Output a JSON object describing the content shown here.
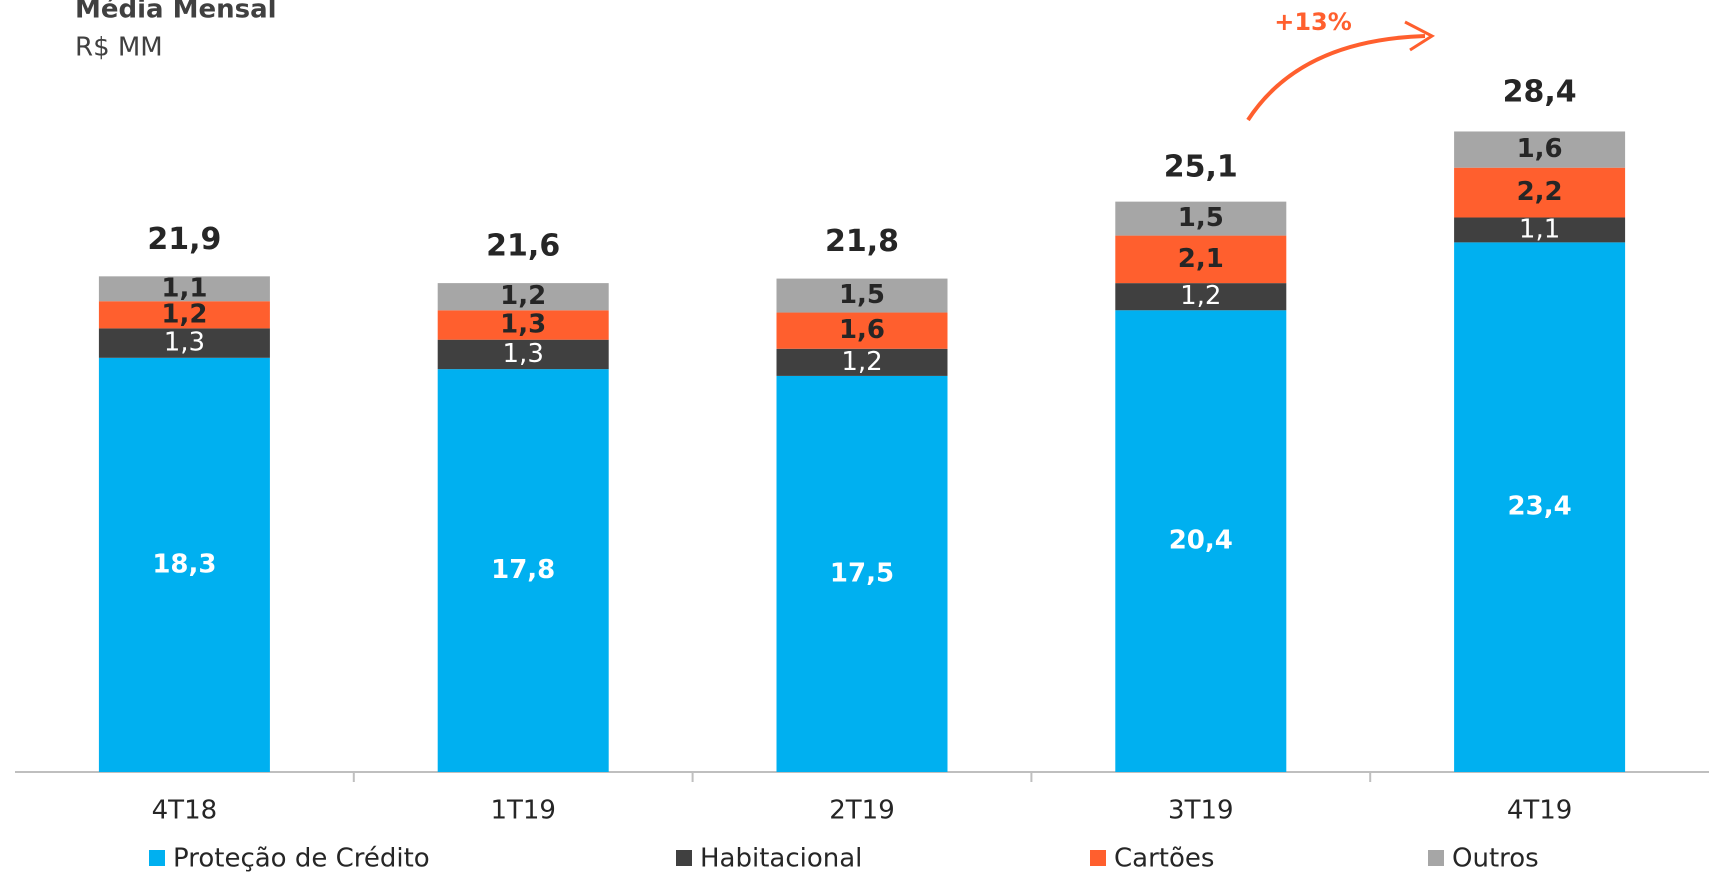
{
  "chart_data": {
    "type": "stacked_bar",
    "title": "Média Mensal",
    "subtitle": "R$ MM",
    "categories": [
      "4T18",
      "1T19",
      "2T19",
      "3T19",
      "4T19"
    ],
    "series": [
      {
        "name": "Proteção de Crédito",
        "color": "#00b0f0",
        "values": [
          18.3,
          17.8,
          17.5,
          20.4,
          23.4
        ],
        "value_labels": [
          "18,3",
          "17,8",
          "17,5",
          "20,4",
          "23,4"
        ]
      },
      {
        "name": "Habitacional",
        "color": "#404040",
        "values": [
          1.3,
          1.3,
          1.2,
          1.2,
          1.1
        ],
        "value_labels": [
          "1,3",
          "1,3",
          "1,2",
          "1,2",
          "1,1"
        ]
      },
      {
        "name": "Cartões",
        "color": "#ff5f2e",
        "values": [
          1.2,
          1.3,
          1.6,
          2.1,
          2.2
        ],
        "value_labels": [
          "1,2",
          "1,3",
          "1,6",
          "2,1",
          "2,2"
        ]
      },
      {
        "name": "Outros",
        "color": "#a6a6a6",
        "values": [
          1.1,
          1.2,
          1.5,
          1.5,
          1.6
        ],
        "value_labels": [
          "1,1",
          "1,2",
          "1,5",
          "1,5",
          "1,6"
        ]
      }
    ],
    "totals": [
      21.9,
      21.6,
      21.8,
      25.1,
      28.4
    ],
    "total_labels": [
      "21,9",
      "21,6",
      "21,8",
      "25,1",
      "28,4"
    ],
    "annotation": "+13%",
    "ylim": [
      0,
      30
    ]
  }
}
